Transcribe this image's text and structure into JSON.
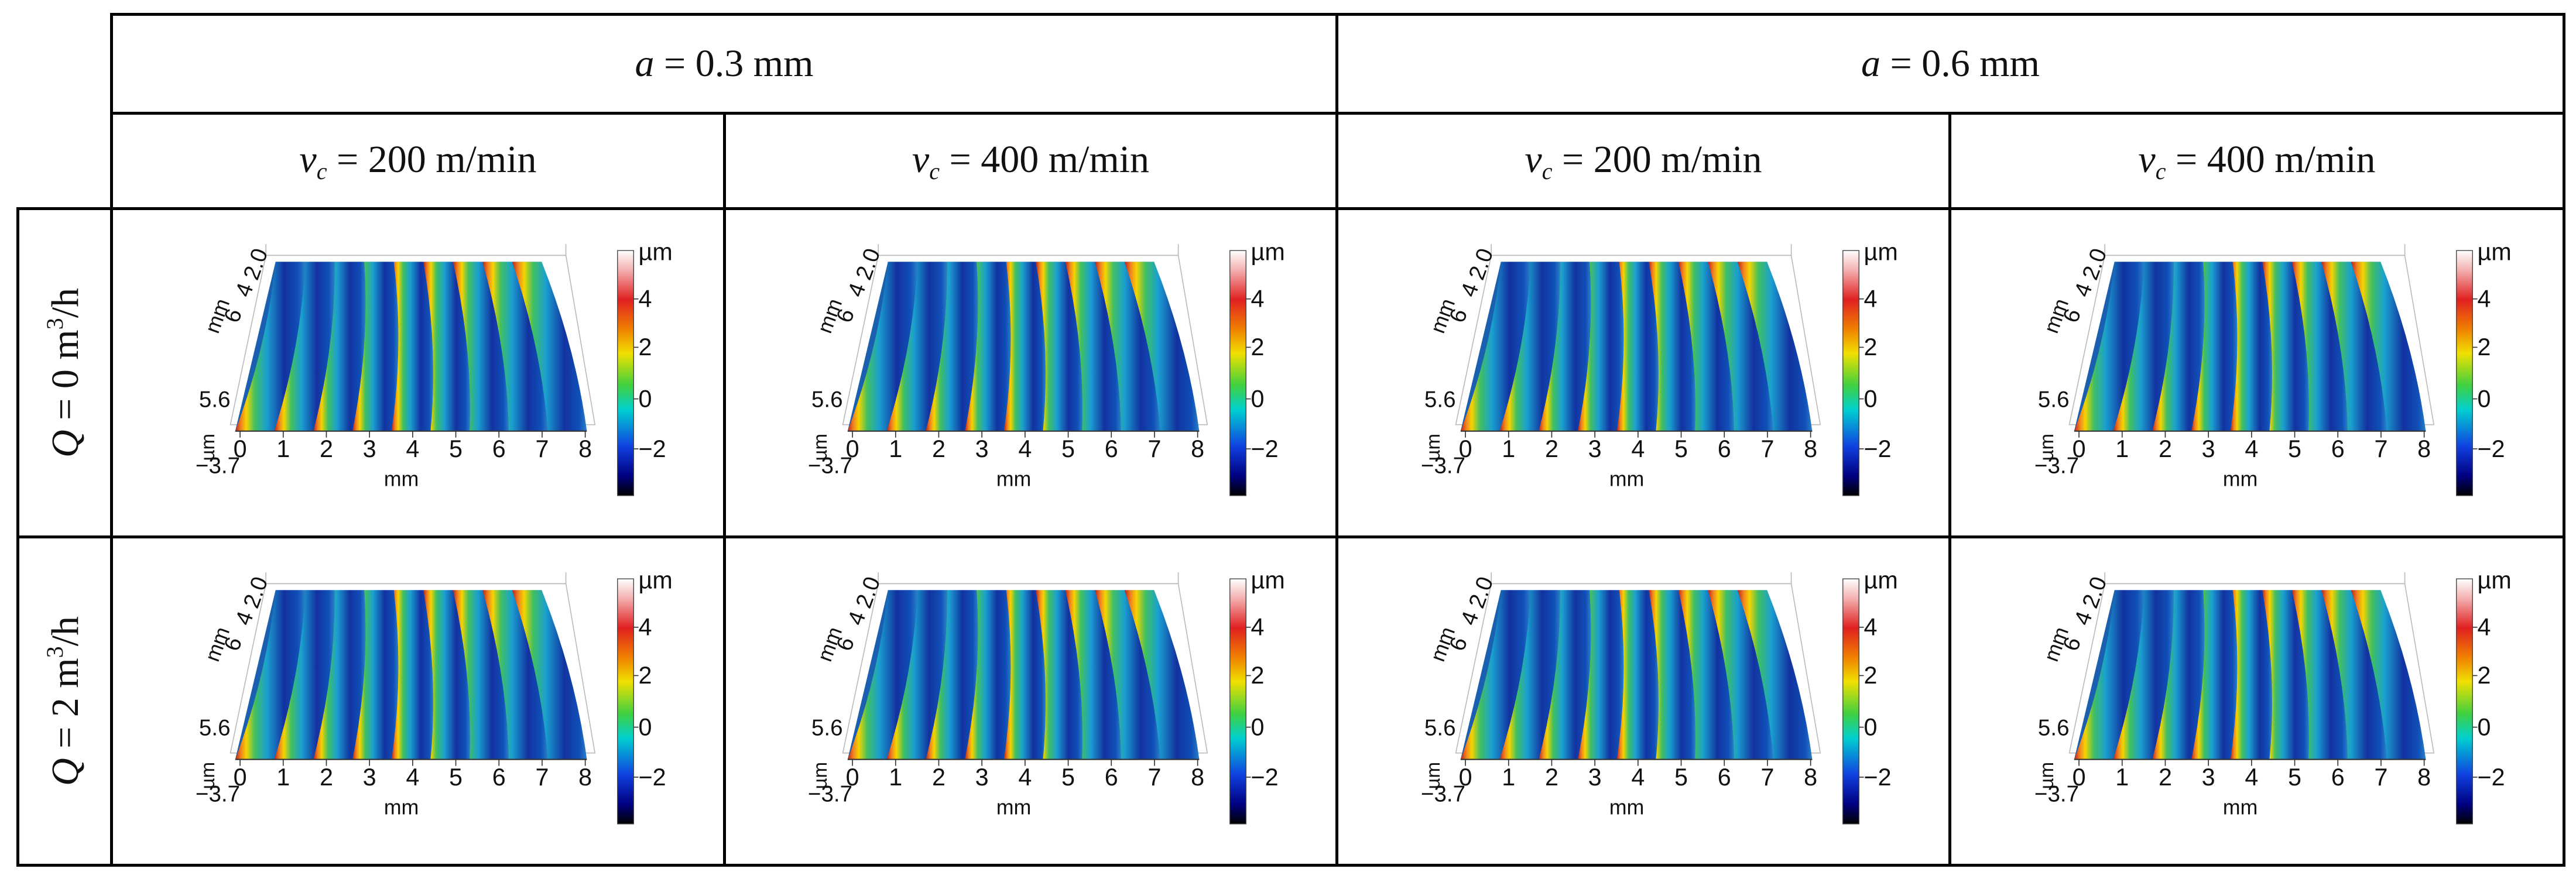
{
  "header": {
    "a_levels": [
      {
        "symbol": "a",
        "text": " = 0.3 mm"
      },
      {
        "symbol": "a",
        "text": " = 0.6 mm"
      }
    ],
    "vc_levels": [
      {
        "symbol": "v",
        "sub": "c",
        "text": " = 200 m/min"
      },
      {
        "symbol": "v",
        "sub": "c",
        "text": " = 400 m/min"
      },
      {
        "symbol": "v",
        "sub": "c",
        "text": " = 200 m/min"
      },
      {
        "symbol": "v",
        "sub": "c",
        "text": " = 400 m/min"
      }
    ]
  },
  "rows": [
    {
      "symbol": "Q",
      "text": " = 0 m",
      "sup": "3",
      "unit": "/h"
    },
    {
      "symbol": "Q",
      "text": " = 2 m",
      "sup": "3",
      "unit": "/h"
    }
  ],
  "plot": {
    "x_ticks": [
      "0",
      "1",
      "2",
      "3",
      "4",
      "5",
      "6",
      "7",
      "8"
    ],
    "x_label": "mm",
    "y_label": "mm",
    "y_ticks": [
      "2.0",
      "4",
      "6"
    ],
    "z_top": "5.6",
    "z_bottom": "−3.7",
    "z_label": "µm",
    "colorbar_label": "µm",
    "colorbar_ticks": [
      "4",
      "2",
      "0",
      "−2"
    ]
  }
}
